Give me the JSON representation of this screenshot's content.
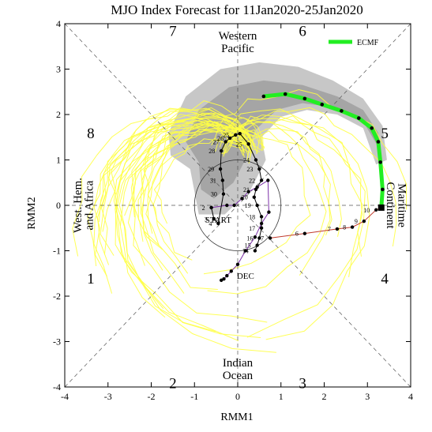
{
  "chart_data": {
    "type": "line",
    "title": "MJO Index Forecast for 11Jan2020-25Jan2020",
    "xlabel": "RMM1",
    "ylabel": "RMM2",
    "xlim": [
      -4,
      4
    ],
    "ylim": [
      -4,
      4
    ],
    "x_ticks": [
      "-4",
      "-3",
      "-2",
      "-1",
      "0",
      "1",
      "2",
      "3",
      "4"
    ],
    "y_ticks": [
      "-4",
      "-3",
      "-2",
      "-1",
      "0",
      "1",
      "2",
      "3",
      "4"
    ],
    "phases": [
      "1",
      "2",
      "3",
      "4",
      "5",
      "6",
      "7",
      "8"
    ],
    "regions": {
      "top": [
        "Western",
        "Pacific"
      ],
      "bottom": [
        "Indian",
        "Ocean"
      ],
      "left": [
        "West. Hem.",
        "and Africa"
      ],
      "right": [
        "Maritime",
        "Continent"
      ]
    },
    "legend": {
      "label": "ECMF",
      "position": "top-right"
    },
    "markers": {
      "start": "START",
      "dec": "DEC"
    },
    "observed_color": "#000000",
    "observed": {
      "x": [
        -0.61,
        -0.55,
        -0.45,
        -0.33,
        -0.35,
        -0.4,
        -0.38,
        -0.28,
        -0.18,
        -0.05,
        0.05,
        0.25,
        0.42,
        0.5,
        0.55,
        0.42,
        0.38,
        0.45,
        0.55,
        0.55,
        0.5,
        0.45,
        0.4
      ],
      "y": [
        -0.05,
        -0.3,
        -0.4,
        0.25,
        0.55,
        0.8,
        1.2,
        1.4,
        1.48,
        1.55,
        1.58,
        1.35,
        1.0,
        0.8,
        0.55,
        0.35,
        0.18,
        0.0,
        -0.25,
        -0.5,
        -0.72,
        -0.88,
        -1.0
      ],
      "labels": [
        "2",
        "3",
        "4",
        "30",
        "31",
        "29",
        "28",
        "27",
        "26",
        "25",
        "",
        "25",
        "24",
        "23",
        "22",
        "21",
        "20",
        "19",
        "18",
        "17",
        "16",
        "15",
        "14"
      ]
    },
    "dec_color": "#7b2fa8",
    "dec_path": {
      "x": [
        -0.61,
        -0.25,
        -0.08,
        0.1,
        0.25,
        0.45,
        0.7,
        0.72,
        0.55,
        0.4,
        0.18,
        0.0,
        -0.15,
        -0.25,
        -0.32,
        -0.38
      ],
      "y": [
        -0.05,
        0.0,
        0.0,
        0.15,
        0.3,
        0.4,
        0.55,
        -0.15,
        -0.4,
        -0.7,
        -1.0,
        -1.3,
        -1.45,
        -1.55,
        -1.62,
        -1.65
      ],
      "labels": [
        "",
        "",
        "",
        "",
        "",
        "",
        "",
        "",
        "",
        "",
        "",
        "",
        "",
        "",
        "",
        ""
      ]
    },
    "analysis_color": "#c0392b",
    "analysis_path": {
      "x": [
        0.75,
        1.55,
        2.3,
        2.65,
        2.92,
        3.2,
        3.32
      ],
      "y": [
        -0.72,
        -0.62,
        -0.52,
        -0.48,
        -0.35,
        -0.1,
        -0.05
      ],
      "labels": [
        "7",
        "6",
        "7",
        "8",
        "9",
        "10",
        ""
      ]
    },
    "ecmf_color": "#22ee22",
    "ecmf_mean": {
      "x": [
        3.32,
        3.35,
        3.3,
        3.25,
        3.1,
        2.8,
        2.4,
        1.95,
        1.55,
        1.1,
        0.6
      ],
      "y": [
        -0.05,
        0.35,
        0.95,
        1.4,
        1.7,
        1.92,
        2.08,
        2.22,
        2.35,
        2.45,
        2.4
      ]
    },
    "ensemble_color": "#ffff44",
    "ensemble_shading": "#999999"
  }
}
